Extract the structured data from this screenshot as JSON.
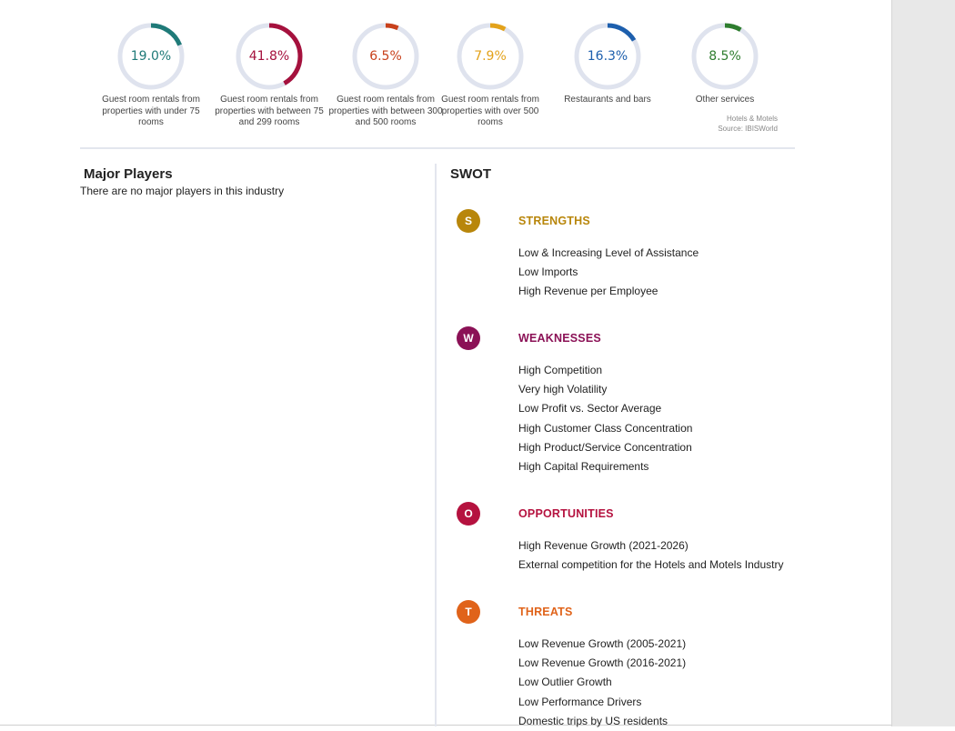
{
  "donuts": [
    {
      "value": 19.0,
      "label_text": "19.0%",
      "color": "#1f7a78",
      "caption": "Guest room rentals from properties with under 75 rooms"
    },
    {
      "value": 41.8,
      "label_text": "41.8%",
      "color": "#a5113d",
      "caption": "Guest room rentals from properties with between 75 and 299 rooms"
    },
    {
      "value": 6.5,
      "label_text": "6.5%",
      "color": "#c8411b",
      "caption": "Guest room rentals from properties with between 300 and 500 rooms"
    },
    {
      "value": 7.9,
      "label_text": "7.9%",
      "color": "#e3a21a",
      "caption": "Guest room rentals from properties with over 500 rooms"
    },
    {
      "value": 16.3,
      "label_text": "16.3%",
      "color": "#1d5fad",
      "caption": "Restaurants and bars"
    },
    {
      "value": 8.5,
      "label_text": "8.5%",
      "color": "#2e7d2e",
      "caption": "Other services"
    }
  ],
  "source": {
    "line1": "Hotels & Motels",
    "line2": "Source: IBISWorld"
  },
  "major_players": {
    "title": "Major Players",
    "text": "There are no major players in this industry"
  },
  "swot": {
    "title": "SWOT",
    "sections": [
      {
        "letter": "S",
        "heading": "STRENGTHS",
        "color": "#b8860b",
        "items": [
          "Low & Increasing Level of Assistance",
          "Low Imports",
          "High Revenue per Employee"
        ]
      },
      {
        "letter": "W",
        "heading": "WEAKNESSES",
        "color": "#8b1156",
        "items": [
          "High Competition",
          "Very high Volatility",
          "Low Profit vs. Sector Average",
          "High Customer Class Concentration",
          "High Product/Service Concentration",
          "High Capital Requirements"
        ]
      },
      {
        "letter": "O",
        "heading": "OPPORTUNITIES",
        "color": "#b5123f",
        "items": [
          "High Revenue Growth (2021-2026)",
          "External competition for the Hotels and Motels Industry"
        ]
      },
      {
        "letter": "T",
        "heading": "THREATS",
        "color": "#e0631a",
        "items": [
          "Low Revenue Growth (2005-2021)",
          "Low Revenue Growth (2016-2021)",
          "Low Outlier Growth",
          "Low Performance Drivers",
          "Domestic trips by US residents"
        ]
      }
    ]
  }
}
